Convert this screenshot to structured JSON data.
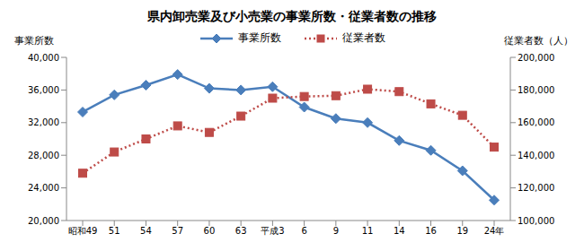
{
  "chart_data": {
    "type": "line",
    "title": "県内卸売業及び小売業の事業所数・従業者数の推移",
    "ylabel": "事業所数",
    "y2label": "従業者数（人）",
    "categories": [
      "昭和49",
      "51",
      "54",
      "57",
      "60",
      "63",
      "平成3",
      "6",
      "9",
      "11",
      "14",
      "16",
      "19",
      "24年"
    ],
    "series": [
      {
        "name": "事業所数",
        "color": "#4a7ebb",
        "marker": "diamond",
        "line_style": "solid",
        "axis": "y",
        "values": [
          33300,
          35400,
          36600,
          37900,
          36200,
          36000,
          36400,
          33900,
          32500,
          32000,
          29800,
          28600,
          26100,
          22500
        ]
      },
      {
        "name": "従業者数",
        "color": "#be4b48",
        "marker": "square",
        "line_style": "dotted",
        "axis": "y2",
        "values": [
          129000,
          142000,
          150000,
          158000,
          154000,
          164000,
          175000,
          176000,
          176500,
          180500,
          179000,
          171500,
          164500,
          145000
        ]
      }
    ],
    "ylim": [
      20000,
      40000
    ],
    "yticks": [
      {
        "value": 20000,
        "label": "20,000"
      },
      {
        "value": 24000,
        "label": "24,000"
      },
      {
        "value": 28000,
        "label": "28,000"
      },
      {
        "value": 32000,
        "label": "32,000"
      },
      {
        "value": 36000,
        "label": "36,000"
      },
      {
        "value": 40000,
        "label": "40,000"
      }
    ],
    "y2lim": [
      100000,
      200000
    ],
    "y2ticks": [
      {
        "value": 100000,
        "label": "100,000"
      },
      {
        "value": 120000,
        "label": "120,000"
      },
      {
        "value": 140000,
        "label": "140,000"
      },
      {
        "value": 160000,
        "label": "160,000"
      },
      {
        "value": 180000,
        "label": "180,000"
      },
      {
        "value": 200000,
        "label": "200,000"
      }
    ],
    "grid": false,
    "legend": "top"
  }
}
